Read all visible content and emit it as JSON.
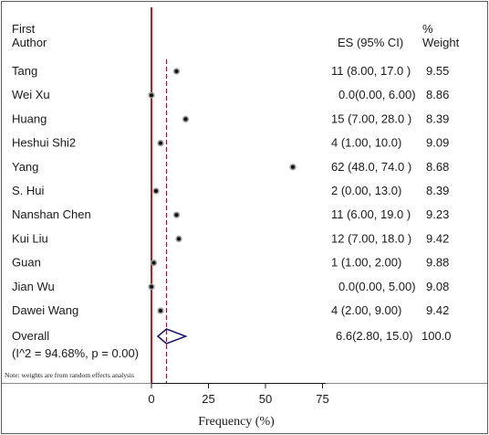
{
  "chart_data": {
    "type": "forest",
    "header": {
      "author_line1": "First",
      "author_line2": "Author",
      "es_label": "ES (95% CI)",
      "weight_line1": "%",
      "weight_line2": "Weight"
    },
    "studies": [
      {
        "author": "Tang",
        "es_text": "11 (8.00, 17.0 )",
        "weight": "9.55",
        "es": 11
      },
      {
        "author": "Wei Xu",
        "es_text": "0.0(0.00, 6.00)",
        "weight": "8.86",
        "es": 0
      },
      {
        "author": "Huang",
        "es_text": "15 (7.00, 28.0 )",
        "weight": "8.39",
        "es": 15
      },
      {
        "author": "Heshui Shi2",
        "es_text": "4 (1.00, 10.0)",
        "weight": "9.09",
        "es": 4
      },
      {
        "author": "Yang",
        "es_text": "62 (48.0, 74.0 )",
        "weight": "8.68",
        "es": 62
      },
      {
        "author": "S. Hui",
        "es_text": "2 (0.00, 13.0)",
        "weight": "8.39",
        "es": 2
      },
      {
        "author": "Nanshan Chen",
        "es_text": "11 (6.00, 19.0 )",
        "weight": "9.23",
        "es": 11
      },
      {
        "author": "Kui Liu",
        "es_text": "12 (7.00, 18.0 )",
        "weight": "9.42",
        "es": 12
      },
      {
        "author": "Guan",
        "es_text": "1 (1.00, 2.00)",
        "weight": "9.88",
        "es": 1
      },
      {
        "author": "Jian Wu",
        "es_text": "0.0(0.00, 5.00)",
        "weight": "9.08",
        "es": 0
      },
      {
        "author": "Dawei Wang",
        "es_text": "4 (2.00, 9.00)",
        "weight": "9.42",
        "es": 4
      }
    ],
    "overall": {
      "author": "Overall",
      "es_text": "6.6(2.80, 15.0)",
      "weight": "100.0",
      "es": 6.6,
      "ci": [
        2.8,
        15.0
      ]
    },
    "heterogeneity": "(I^2 = 94.68%, p = 0.00)",
    "note": "Note: weights are from random effects analysis",
    "x_ticks": [
      0,
      25,
      50,
      75
    ],
    "xlabel": "Frequency (%)",
    "null_line": 0,
    "colors": {
      "null_line": "#b22222",
      "overall_line": "#7a1f3d",
      "diamond": "#1f1a6b"
    }
  }
}
